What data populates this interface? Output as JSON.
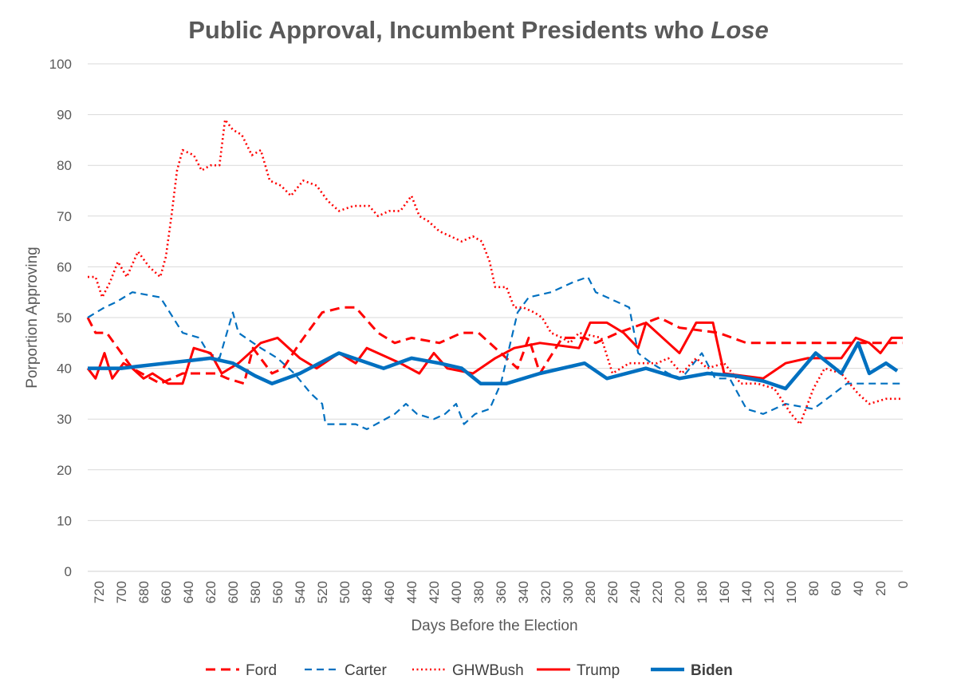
{
  "chart_data": {
    "type": "line",
    "title": "Public Approval, Incumbent Presidents who",
    "title_emphasis": "Lose",
    "xlabel": "Days Before the Election",
    "ylabel": "Porportion Approving",
    "xlim": [
      730,
      0
    ],
    "ylim": [
      0,
      100
    ],
    "x_ticks": [
      720,
      700,
      680,
      660,
      640,
      620,
      600,
      580,
      560,
      540,
      520,
      500,
      480,
      460,
      440,
      420,
      400,
      380,
      360,
      340,
      320,
      300,
      280,
      260,
      240,
      220,
      200,
      180,
      160,
      140,
      120,
      100,
      80,
      60,
      40,
      20,
      0
    ],
    "y_ticks": [
      0,
      10,
      20,
      30,
      40,
      50,
      60,
      70,
      80,
      90,
      100
    ],
    "grid": "horizontal",
    "legend_position": "bottom",
    "series": [
      {
        "name": "Ford",
        "color": "#ff0000",
        "style": "dash",
        "bold": false,
        "points": [
          [
            730,
            50
          ],
          [
            723,
            47
          ],
          [
            713,
            47
          ],
          [
            690,
            40
          ],
          [
            665,
            37
          ],
          [
            645,
            39
          ],
          [
            615,
            39
          ],
          [
            605,
            38
          ],
          [
            590,
            37
          ],
          [
            582,
            44
          ],
          [
            565,
            39
          ],
          [
            555,
            40
          ],
          [
            540,
            45
          ],
          [
            520,
            51
          ],
          [
            502,
            52
          ],
          [
            490,
            52
          ],
          [
            470,
            47
          ],
          [
            455,
            45
          ],
          [
            440,
            46
          ],
          [
            415,
            45
          ],
          [
            395,
            47
          ],
          [
            380,
            47
          ],
          [
            360,
            43
          ],
          [
            345,
            40
          ],
          [
            335,
            46
          ],
          [
            325,
            39
          ],
          [
            305,
            46
          ],
          [
            285,
            46
          ],
          [
            275,
            45
          ],
          [
            255,
            47
          ],
          [
            230,
            49
          ],
          [
            218,
            50
          ],
          [
            200,
            48
          ],
          [
            165,
            47
          ],
          [
            140,
            45
          ],
          [
            100,
            45
          ],
          [
            40,
            45
          ],
          [
            0,
            45
          ]
        ]
      },
      {
        "name": "Carter",
        "color": "#0070c0",
        "style": "dash",
        "bold": false,
        "points": [
          [
            730,
            50
          ],
          [
            715,
            52
          ],
          [
            705,
            53
          ],
          [
            690,
            55
          ],
          [
            665,
            54
          ],
          [
            645,
            47
          ],
          [
            630,
            46
          ],
          [
            622,
            43
          ],
          [
            612,
            42
          ],
          [
            600,
            51
          ],
          [
            595,
            47
          ],
          [
            575,
            44
          ],
          [
            560,
            42
          ],
          [
            545,
            39
          ],
          [
            530,
            35
          ],
          [
            520,
            33
          ],
          [
            517,
            29
          ],
          [
            505,
            29
          ],
          [
            490,
            29
          ],
          [
            480,
            28
          ],
          [
            455,
            31
          ],
          [
            445,
            33
          ],
          [
            435,
            31
          ],
          [
            420,
            30
          ],
          [
            410,
            31
          ],
          [
            400,
            33
          ],
          [
            393,
            29
          ],
          [
            383,
            31
          ],
          [
            370,
            32
          ],
          [
            360,
            37
          ],
          [
            345,
            51
          ],
          [
            335,
            54
          ],
          [
            315,
            55
          ],
          [
            295,
            57
          ],
          [
            282,
            58
          ],
          [
            275,
            55
          ],
          [
            255,
            53
          ],
          [
            245,
            52
          ],
          [
            237,
            43
          ],
          [
            225,
            41
          ],
          [
            210,
            39
          ],
          [
            198,
            38
          ],
          [
            180,
            43
          ],
          [
            168,
            38
          ],
          [
            155,
            38
          ],
          [
            140,
            32
          ],
          [
            125,
            31
          ],
          [
            115,
            32
          ],
          [
            105,
            33
          ],
          [
            80,
            32
          ],
          [
            50,
            37
          ],
          [
            35,
            37
          ],
          [
            0,
            37
          ]
        ]
      },
      {
        "name": "GHWBush",
        "color": "#ff0000",
        "style": "dot",
        "bold": false,
        "points": [
          [
            730,
            58
          ],
          [
            723,
            58
          ],
          [
            717,
            54
          ],
          [
            710,
            57
          ],
          [
            703,
            61
          ],
          [
            695,
            58
          ],
          [
            685,
            63
          ],
          [
            675,
            60
          ],
          [
            665,
            58
          ],
          [
            660,
            62
          ],
          [
            655,
            70
          ],
          [
            650,
            79
          ],
          [
            645,
            83
          ],
          [
            635,
            82
          ],
          [
            628,
            79
          ],
          [
            620,
            80
          ],
          [
            612,
            80
          ],
          [
            607,
            89
          ],
          [
            600,
            87
          ],
          [
            592,
            86
          ],
          [
            583,
            82
          ],
          [
            575,
            83
          ],
          [
            567,
            77
          ],
          [
            557,
            76
          ],
          [
            548,
            74
          ],
          [
            537,
            77
          ],
          [
            525,
            76
          ],
          [
            515,
            73
          ],
          [
            505,
            71
          ],
          [
            492,
            72
          ],
          [
            478,
            72
          ],
          [
            470,
            70
          ],
          [
            460,
            71
          ],
          [
            450,
            71
          ],
          [
            440,
            74
          ],
          [
            433,
            70
          ],
          [
            425,
            69
          ],
          [
            415,
            67
          ],
          [
            405,
            66
          ],
          [
            395,
            65
          ],
          [
            385,
            66
          ],
          [
            377,
            65
          ],
          [
            370,
            61
          ],
          [
            365,
            56
          ],
          [
            355,
            56
          ],
          [
            348,
            52
          ],
          [
            340,
            52
          ],
          [
            330,
            51
          ],
          [
            323,
            50
          ],
          [
            315,
            47
          ],
          [
            305,
            46
          ],
          [
            298,
            45
          ],
          [
            290,
            47
          ],
          [
            270,
            46
          ],
          [
            260,
            39
          ],
          [
            245,
            41
          ],
          [
            235,
            41
          ],
          [
            220,
            41
          ],
          [
            210,
            42
          ],
          [
            198,
            39
          ],
          [
            185,
            42
          ],
          [
            175,
            40
          ],
          [
            160,
            41
          ],
          [
            145,
            37
          ],
          [
            130,
            37
          ],
          [
            115,
            36
          ],
          [
            100,
            31
          ],
          [
            92,
            29
          ],
          [
            80,
            36
          ],
          [
            70,
            40
          ],
          [
            55,
            39
          ],
          [
            40,
            35
          ],
          [
            30,
            33
          ],
          [
            15,
            34
          ],
          [
            0,
            34
          ]
        ]
      },
      {
        "name": "Trump",
        "color": "#ff0000",
        "style": "solid",
        "bold": false,
        "points": [
          [
            730,
            40
          ],
          [
            723,
            38
          ],
          [
            715,
            43
          ],
          [
            708,
            38
          ],
          [
            698,
            41
          ],
          [
            690,
            40
          ],
          [
            680,
            38
          ],
          [
            672,
            39
          ],
          [
            658,
            37
          ],
          [
            645,
            37
          ],
          [
            635,
            44
          ],
          [
            620,
            43
          ],
          [
            610,
            39
          ],
          [
            595,
            41
          ],
          [
            575,
            45
          ],
          [
            560,
            46
          ],
          [
            540,
            42
          ],
          [
            525,
            40
          ],
          [
            505,
            43
          ],
          [
            490,
            41
          ],
          [
            480,
            44
          ],
          [
            460,
            42
          ],
          [
            450,
            41
          ],
          [
            433,
            39
          ],
          [
            420,
            43
          ],
          [
            408,
            40
          ],
          [
            385,
            39
          ],
          [
            365,
            42
          ],
          [
            348,
            44
          ],
          [
            325,
            45
          ],
          [
            290,
            44
          ],
          [
            280,
            49
          ],
          [
            265,
            49
          ],
          [
            250,
            47
          ],
          [
            237,
            44
          ],
          [
            230,
            49
          ],
          [
            210,
            45
          ],
          [
            200,
            43
          ],
          [
            185,
            49
          ],
          [
            170,
            49
          ],
          [
            160,
            39
          ],
          [
            125,
            38
          ],
          [
            105,
            41
          ],
          [
            85,
            42
          ],
          [
            75,
            42
          ],
          [
            55,
            42
          ],
          [
            42,
            46
          ],
          [
            30,
            45
          ],
          [
            20,
            43
          ],
          [
            10,
            46
          ],
          [
            0,
            46
          ]
        ]
      },
      {
        "name": "Biden",
        "color": "#0070c0",
        "style": "solid",
        "bold": true,
        "points": [
          [
            730,
            40
          ],
          [
            700,
            40
          ],
          [
            685,
            40.4
          ],
          [
            660,
            41
          ],
          [
            640,
            41.5
          ],
          [
            620,
            42
          ],
          [
            600,
            41
          ],
          [
            580,
            38.5
          ],
          [
            565,
            37
          ],
          [
            540,
            39
          ],
          [
            505,
            43
          ],
          [
            465,
            40
          ],
          [
            440,
            42
          ],
          [
            415,
            41
          ],
          [
            395,
            40
          ],
          [
            378,
            37
          ],
          [
            355,
            37
          ],
          [
            325,
            39
          ],
          [
            285,
            41
          ],
          [
            265,
            38
          ],
          [
            230,
            40
          ],
          [
            200,
            38
          ],
          [
            175,
            39
          ],
          [
            150,
            38.5
          ],
          [
            125,
            37.5
          ],
          [
            105,
            36
          ],
          [
            78,
            43
          ],
          [
            55,
            39
          ],
          [
            40,
            45
          ],
          [
            30,
            39
          ],
          [
            15,
            41
          ],
          [
            5,
            39.5
          ]
        ]
      }
    ]
  }
}
